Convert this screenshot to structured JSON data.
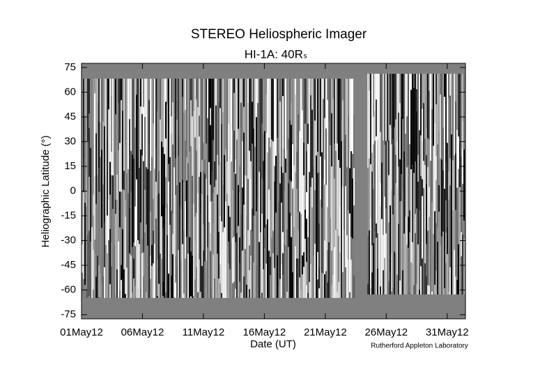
{
  "chart_data": {
    "type": "image",
    "title": "STEREO Heliospheric Imager",
    "subtitle": "HI-1A: 40Rₛ",
    "xlabel": "Date (UT)",
    "ylabel": "Heliographic Latitude (°)",
    "credit": "Rutherford Appleton Laboratory",
    "xlim": [
      1,
      32.5
    ],
    "xticks": [
      {
        "value": 1,
        "label": "01May12"
      },
      {
        "value": 6,
        "label": "06May12"
      },
      {
        "value": 11,
        "label": "11May12"
      },
      {
        "value": 16,
        "label": "16May12"
      },
      {
        "value": 21,
        "label": "21May12"
      },
      {
        "value": 26,
        "label": "26May12"
      },
      {
        "value": 31,
        "label": "31May12"
      }
    ],
    "ylim": [
      -77.5,
      77.5
    ],
    "yticks": [
      -75,
      -60,
      -45,
      -30,
      -15,
      0,
      15,
      30,
      45,
      60,
      75
    ]
  }
}
